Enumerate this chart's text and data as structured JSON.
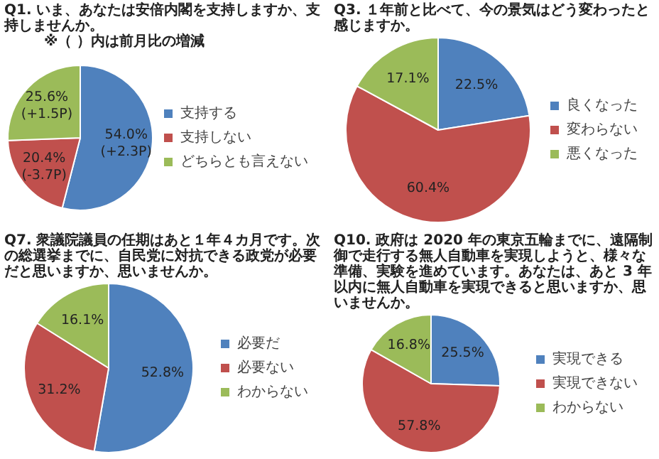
{
  "chart_data": [
    {
      "type": "pie",
      "title": "Q1.  いま、あなたは安倍内閣を支持しますか、支持しませんか。",
      "subtitle": "※（ ）内は前月比の増減",
      "categories": [
        "支持する",
        "支持しない",
        "どちらとも言えない"
      ],
      "values": [
        54.0,
        20.4,
        25.6
      ],
      "colors": [
        "#4f81bd",
        "#c0504d",
        "#9bbb59"
      ],
      "value_labels": [
        "54.0%\n(+2.3P)",
        "20.4%\n(-3.7P)",
        "25.6%\n(+1.5P)"
      ],
      "legend": "right"
    },
    {
      "type": "pie",
      "title": "Q3.  １年前と比べて、今の景気はどう変わったと感じますか。",
      "categories": [
        "良くなった",
        "変わらない",
        "悪くなった"
      ],
      "values": [
        22.5,
        60.4,
        17.1
      ],
      "colors": [
        "#4f81bd",
        "#c0504d",
        "#9bbb59"
      ],
      "value_labels": [
        "22.5%",
        "60.4%",
        "17.1%"
      ],
      "legend": "right"
    },
    {
      "type": "pie",
      "title": "Q7.  衆議院議員の任期はあと１年４カ月です。次の総選挙までに、自民党に対抗できる政党が必要だと思いますか、思いませんか。",
      "categories": [
        "必要だ",
        "必要ない",
        "わからない"
      ],
      "values": [
        52.8,
        31.2,
        16.1
      ],
      "colors": [
        "#4f81bd",
        "#c0504d",
        "#9bbb59"
      ],
      "value_labels": [
        "52.8%",
        "31.2%",
        "16.1%"
      ],
      "legend": "right"
    },
    {
      "type": "pie",
      "title": "Q10.  政府は 2020 年の東京五輪までに、遠隔制御で走行する無人自動車を実現しようと、様々な準備、実験を進めています。あなたは、あと 3 年以内に無人自動車を実現できると思いますか、思いませんか。",
      "categories": [
        "実現できる",
        "実現できない",
        "わからない"
      ],
      "values": [
        25.5,
        57.8,
        16.8
      ],
      "colors": [
        "#4f81bd",
        "#c0504d",
        "#9bbb59"
      ],
      "value_labels": [
        "25.5%",
        "57.8%",
        "16.8%"
      ],
      "legend": "right"
    }
  ]
}
